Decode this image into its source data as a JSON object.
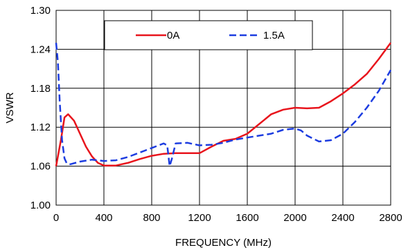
{
  "chart_data": {
    "type": "line",
    "xlabel": "FREQUENCY (MHz)",
    "ylabel": "VSWR",
    "xlim": [
      0,
      2800
    ],
    "ylim": [
      1.0,
      1.3
    ],
    "x_ticks": [
      "0",
      "400",
      "800",
      "1200",
      "1600",
      "2000",
      "2400",
      "2800"
    ],
    "x_tick_values": [
      0,
      400,
      800,
      1200,
      1600,
      2000,
      2400,
      2800
    ],
    "y_ticks": [
      "1.00",
      "1.06",
      "1.12",
      "1.18",
      "1.24",
      "1.30"
    ],
    "y_tick_values": [
      1.0,
      1.06,
      1.12,
      1.18,
      1.24,
      1.3
    ],
    "grid": true,
    "legend_position": "top",
    "series": [
      {
        "name": "0A",
        "color": "#e8141c",
        "style": "solid",
        "points": [
          [
            0,
            1.06
          ],
          [
            40,
            1.1
          ],
          [
            70,
            1.135
          ],
          [
            100,
            1.14
          ],
          [
            150,
            1.13
          ],
          [
            200,
            1.11
          ],
          [
            250,
            1.09
          ],
          [
            300,
            1.075
          ],
          [
            350,
            1.065
          ],
          [
            400,
            1.061
          ],
          [
            500,
            1.061
          ],
          [
            600,
            1.065
          ],
          [
            700,
            1.071
          ],
          [
            800,
            1.076
          ],
          [
            900,
            1.079
          ],
          [
            1000,
            1.08
          ],
          [
            1100,
            1.08
          ],
          [
            1200,
            1.08
          ],
          [
            1300,
            1.09
          ],
          [
            1400,
            1.099
          ],
          [
            1500,
            1.102
          ],
          [
            1600,
            1.11
          ],
          [
            1700,
            1.125
          ],
          [
            1800,
            1.14
          ],
          [
            1900,
            1.147
          ],
          [
            2000,
            1.15
          ],
          [
            2100,
            1.149
          ],
          [
            2200,
            1.15
          ],
          [
            2300,
            1.16
          ],
          [
            2400,
            1.172
          ],
          [
            2500,
            1.186
          ],
          [
            2600,
            1.202
          ],
          [
            2700,
            1.225
          ],
          [
            2800,
            1.25
          ]
        ]
      },
      {
        "name": "1.5A",
        "color": "#1c3ce0",
        "style": "dashed",
        "points": [
          [
            0,
            1.25
          ],
          [
            15,
            1.22
          ],
          [
            30,
            1.16
          ],
          [
            50,
            1.1
          ],
          [
            70,
            1.072
          ],
          [
            90,
            1.064
          ],
          [
            120,
            1.063
          ],
          [
            200,
            1.067
          ],
          [
            300,
            1.07
          ],
          [
            400,
            1.068
          ],
          [
            500,
            1.069
          ],
          [
            600,
            1.074
          ],
          [
            700,
            1.081
          ],
          [
            800,
            1.088
          ],
          [
            900,
            1.095
          ],
          [
            930,
            1.092
          ],
          [
            950,
            1.06
          ],
          [
            970,
            1.072
          ],
          [
            1000,
            1.095
          ],
          [
            1100,
            1.096
          ],
          [
            1200,
            1.092
          ],
          [
            1300,
            1.093
          ],
          [
            1400,
            1.096
          ],
          [
            1500,
            1.101
          ],
          [
            1600,
            1.104
          ],
          [
            1700,
            1.107
          ],
          [
            1800,
            1.11
          ],
          [
            1900,
            1.116
          ],
          [
            2000,
            1.118
          ],
          [
            2050,
            1.115
          ],
          [
            2100,
            1.107
          ],
          [
            2200,
            1.098
          ],
          [
            2300,
            1.1
          ],
          [
            2400,
            1.11
          ],
          [
            2500,
            1.128
          ],
          [
            2600,
            1.15
          ],
          [
            2700,
            1.176
          ],
          [
            2800,
            1.208
          ]
        ]
      }
    ]
  }
}
